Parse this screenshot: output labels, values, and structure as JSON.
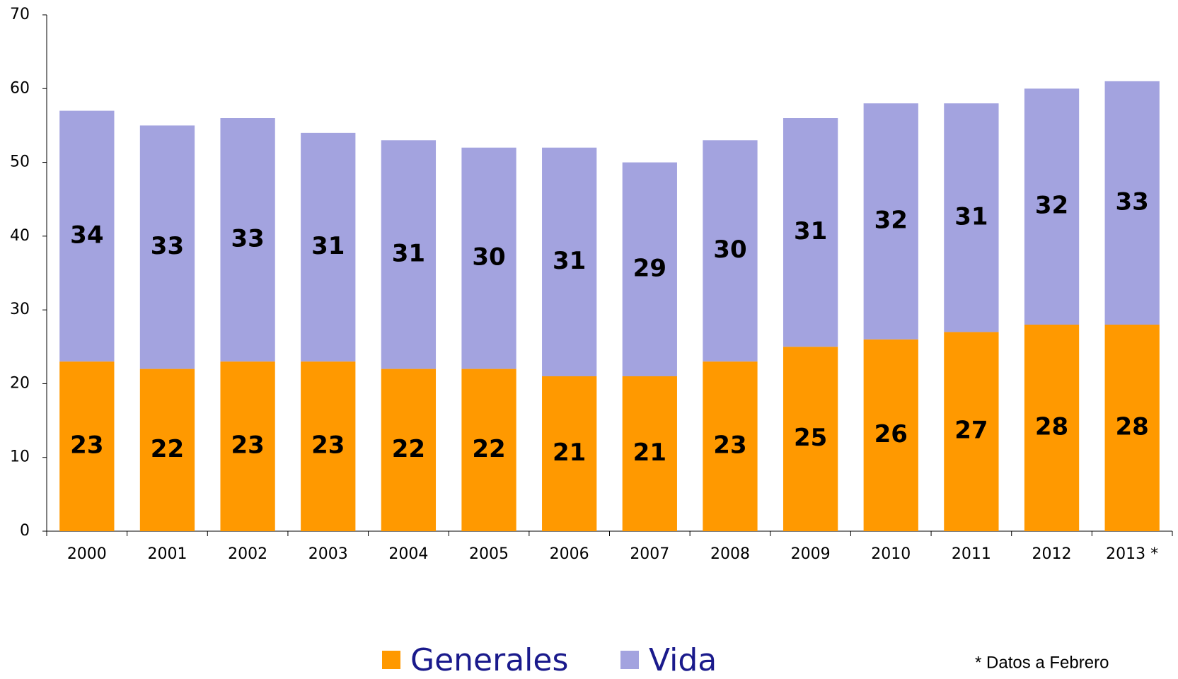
{
  "chart_data": {
    "type": "stacked_bar",
    "categories": [
      "2000",
      "2001",
      "2002",
      "2003",
      "2004",
      "2005",
      "2006",
      "2007",
      "2008",
      "2009",
      "2010",
      "2011",
      "2012",
      "2013 *"
    ],
    "series": [
      {
        "name": "Generales",
        "color": "#ff9900",
        "values": [
          23,
          22,
          23,
          23,
          22,
          22,
          21,
          21,
          23,
          25,
          26,
          27,
          28,
          28
        ]
      },
      {
        "name": "Vida",
        "color": "#a3a3df",
        "values": [
          34,
          33,
          33,
          31,
          31,
          30,
          31,
          29,
          30,
          31,
          32,
          31,
          32,
          33
        ]
      }
    ],
    "ylim": [
      0,
      70
    ],
    "yticks": [
      0,
      10,
      20,
      30,
      40,
      50,
      60,
      70
    ],
    "grid": false,
    "legend": "bottom",
    "note": "* Datos a Febrero"
  }
}
